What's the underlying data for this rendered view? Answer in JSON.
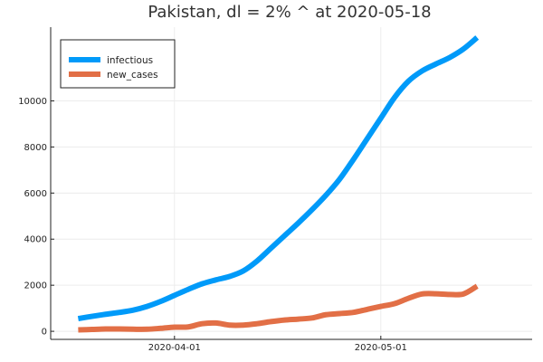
{
  "chart_data": {
    "type": "line",
    "title": "Pakistan,  dl = 2% ^ at 2020-05-18",
    "xlabel": "",
    "ylabel": "",
    "x_ticks": [
      "2020-04-01",
      "2020-05-01"
    ],
    "y_ticks": [
      "0",
      "2000",
      "4000",
      "6000",
      "8000",
      "10000"
    ],
    "xlim": [
      "2020-03-14",
      "2020-05-23"
    ],
    "ylim": [
      -350,
      13200
    ],
    "grid": true,
    "legend_position": "top-left",
    "series": [
      {
        "name": "infectious",
        "color": "#009af9",
        "points": [
          [
            "2020-03-18",
            550
          ],
          [
            "2020-03-20",
            650
          ],
          [
            "2020-03-22",
            740
          ],
          [
            "2020-03-24",
            820
          ],
          [
            "2020-03-26",
            920
          ],
          [
            "2020-03-28",
            1080
          ],
          [
            "2020-03-30",
            1300
          ],
          [
            "2020-04-01",
            1560
          ],
          [
            "2020-04-03",
            1820
          ],
          [
            "2020-04-05",
            2060
          ],
          [
            "2020-04-07",
            2230
          ],
          [
            "2020-04-09",
            2380
          ],
          [
            "2020-04-11",
            2620
          ],
          [
            "2020-04-13",
            3050
          ],
          [
            "2020-04-15",
            3600
          ],
          [
            "2020-04-17",
            4150
          ],
          [
            "2020-04-19",
            4700
          ],
          [
            "2020-04-21",
            5280
          ],
          [
            "2020-04-23",
            5900
          ],
          [
            "2020-04-25",
            6600
          ],
          [
            "2020-04-27",
            7450
          ],
          [
            "2020-04-29",
            8350
          ],
          [
            "2020-05-01",
            9250
          ],
          [
            "2020-05-03",
            10150
          ],
          [
            "2020-05-05",
            10850
          ],
          [
            "2020-05-07",
            11300
          ],
          [
            "2020-05-09",
            11600
          ],
          [
            "2020-05-11",
            11880
          ],
          [
            "2020-05-13",
            12250
          ],
          [
            "2020-05-15",
            12750
          ]
        ]
      },
      {
        "name": "new_cases",
        "color": "#e26f46",
        "points": [
          [
            "2020-03-18",
            60
          ],
          [
            "2020-03-20",
            80
          ],
          [
            "2020-03-22",
            100
          ],
          [
            "2020-03-24",
            100
          ],
          [
            "2020-03-26",
            90
          ],
          [
            "2020-03-28",
            90
          ],
          [
            "2020-03-30",
            130
          ],
          [
            "2020-04-01",
            180
          ],
          [
            "2020-04-03",
            190
          ],
          [
            "2020-04-05",
            330
          ],
          [
            "2020-04-07",
            360
          ],
          [
            "2020-04-09",
            270
          ],
          [
            "2020-04-11",
            270
          ],
          [
            "2020-04-13",
            330
          ],
          [
            "2020-04-15",
            420
          ],
          [
            "2020-04-17",
            490
          ],
          [
            "2020-04-19",
            530
          ],
          [
            "2020-04-21",
            580
          ],
          [
            "2020-04-23",
            720
          ],
          [
            "2020-04-25",
            770
          ],
          [
            "2020-04-27",
            820
          ],
          [
            "2020-04-29",
            950
          ],
          [
            "2020-05-01",
            1080
          ],
          [
            "2020-05-03",
            1200
          ],
          [
            "2020-05-05",
            1430
          ],
          [
            "2020-05-07",
            1620
          ],
          [
            "2020-05-09",
            1630
          ],
          [
            "2020-05-11",
            1600
          ],
          [
            "2020-05-13",
            1620
          ],
          [
            "2020-05-15",
            1960
          ]
        ]
      }
    ]
  }
}
